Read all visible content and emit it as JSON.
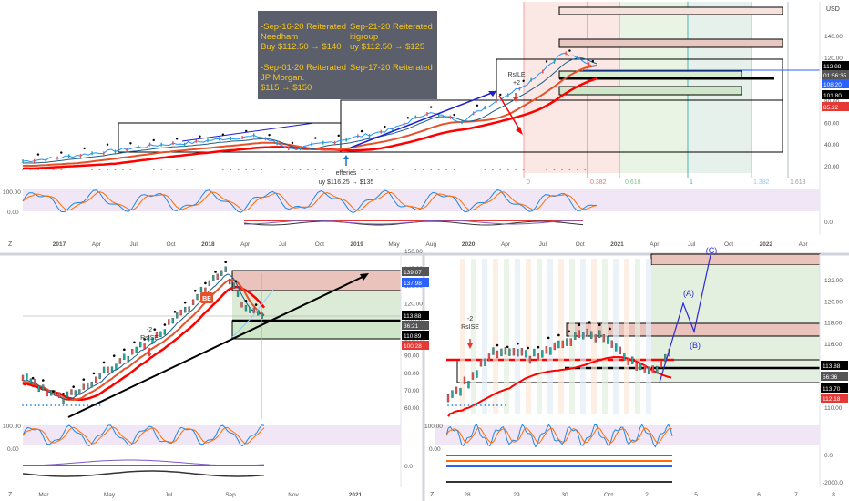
{
  "colors": {
    "price_line": "#1e90ff",
    "ma_fast": "#e6502a",
    "ma_slow": "#ff0000",
    "ma_mid": "#1b5e8a",
    "stoch_k": "#1e88e5",
    "stoch_d": "#ff6d00",
    "candle_up": "#26a69a",
    "candle_dn": "#ef5350",
    "note_bg": "#5b5f6b",
    "note_text": "#f5c518",
    "box_red": "#e8b9b0",
    "box_green": "#cfe6c8",
    "box_blue_text": "#2a2ad0"
  },
  "chart_data": [
    {
      "type": "line",
      "panel": "top",
      "title": "",
      "currency": "USD",
      "x_tick_labels": [
        "2017",
        "Apr",
        "Jul",
        "Oct",
        "2018",
        "Apr",
        "Jul",
        "Oct",
        "2019",
        "May",
        "Aug",
        "2020",
        "Apr",
        "Jul",
        "Oct",
        "2021",
        "Apr",
        "Jul",
        "Oct",
        "2022",
        "Apr"
      ],
      "y_tick_labels": [
        "140.00",
        "120.00",
        "100.00",
        "80.00",
        "60.00",
        "40.00",
        "20.00"
      ],
      "price_labels": [
        "113.88",
        "01:56:35",
        "108.20",
        "101.80",
        "85.22"
      ],
      "series": [
        {
          "x": [
            "2017-01",
            "2017-04",
            "2017-07",
            "2017-10",
            "2018-01",
            "2018-04",
            "2018-07",
            "2018-10",
            "2019-01",
            "2019-05",
            "2019-08",
            "2019-11",
            "2020-01",
            "2020-03",
            "2020-04",
            "2020-06",
            "2020-08",
            "2020-09"
          ],
          "values": [
            25,
            28,
            32,
            36,
            40,
            42,
            46,
            48,
            36,
            42,
            48,
            55,
            70,
            62,
            80,
            98,
            125,
            112
          ]
        }
      ],
      "annotations": [
        "-Sep-16-20 Reiterated",
        "Needham",
        "Buy $112.50 → $140",
        "-Sep-01-20 Reiterated",
        "JP Morgan.",
        "$115 → $150",
        "Sep-21-20 Reiterated",
        "itigroup",
        "uy $112.50 → $125",
        "Sep-17-20 Reiterated",
        "efferies",
        "uy $116.25 → $135",
        "RsILE",
        "+2",
        "-2",
        "RsISE"
      ],
      "fib_levels": [
        "0",
        "0.382",
        "0.618",
        "1",
        "1.382",
        "1.618"
      ],
      "stoch_labels": [
        "100.00",
        "0.00"
      ],
      "macd_labels": [
        "0.0"
      ]
    },
    {
      "type": "line",
      "panel": "bottom-left",
      "x_tick_labels": [
        "Mar",
        "May",
        "Jul",
        "Sep",
        "Nov",
        "2021"
      ],
      "y_tick_labels": [
        "150.00",
        "140.00",
        "130.00",
        "120.00",
        "110.00",
        "100.00",
        "90.00",
        "80.00",
        "70.00",
        "60.00"
      ],
      "price_labels": [
        "139.07",
        "137.98",
        "113.88",
        "36:21",
        "110.89",
        "100.28"
      ],
      "series": [
        {
          "x": [
            "2020-03",
            "2020-04",
            "2020-05",
            "2020-06",
            "2020-07",
            "2020-08",
            "2020-09"
          ],
          "values": [
            68,
            72,
            80,
            88,
            98,
            125,
            112
          ]
        }
      ],
      "annotations": [
        "-2",
        "RsISE",
        "BE"
      ],
      "stoch_labels": [
        "100.00",
        "0.00"
      ],
      "macd_labels": [
        "0.0"
      ]
    },
    {
      "type": "line",
      "panel": "bottom-right",
      "x_tick_labels": [
        "28",
        "29",
        "30",
        "Oct",
        "2",
        "5",
        "6",
        "7",
        "8"
      ],
      "y_tick_labels": [
        "122.00",
        "120.00",
        "118.00",
        "116.00",
        "114.00",
        "112.00",
        "110.00"
      ],
      "price_labels": [
        "113.88",
        "56:36",
        "113.70",
        "112.18"
      ],
      "series": [
        {
          "x": [
            "28",
            "29",
            "30",
            "Oct",
            "2"
          ],
          "values": [
            111.5,
            115,
            115.5,
            117,
            114
          ]
        }
      ],
      "annotations": [
        "-2",
        "RsISE",
        "(A)",
        "(B)",
        "(C)"
      ],
      "stoch_labels": [
        "100.00",
        "0.00"
      ],
      "macd_labels": [
        "0.0",
        "-2000.0"
      ]
    }
  ]
}
